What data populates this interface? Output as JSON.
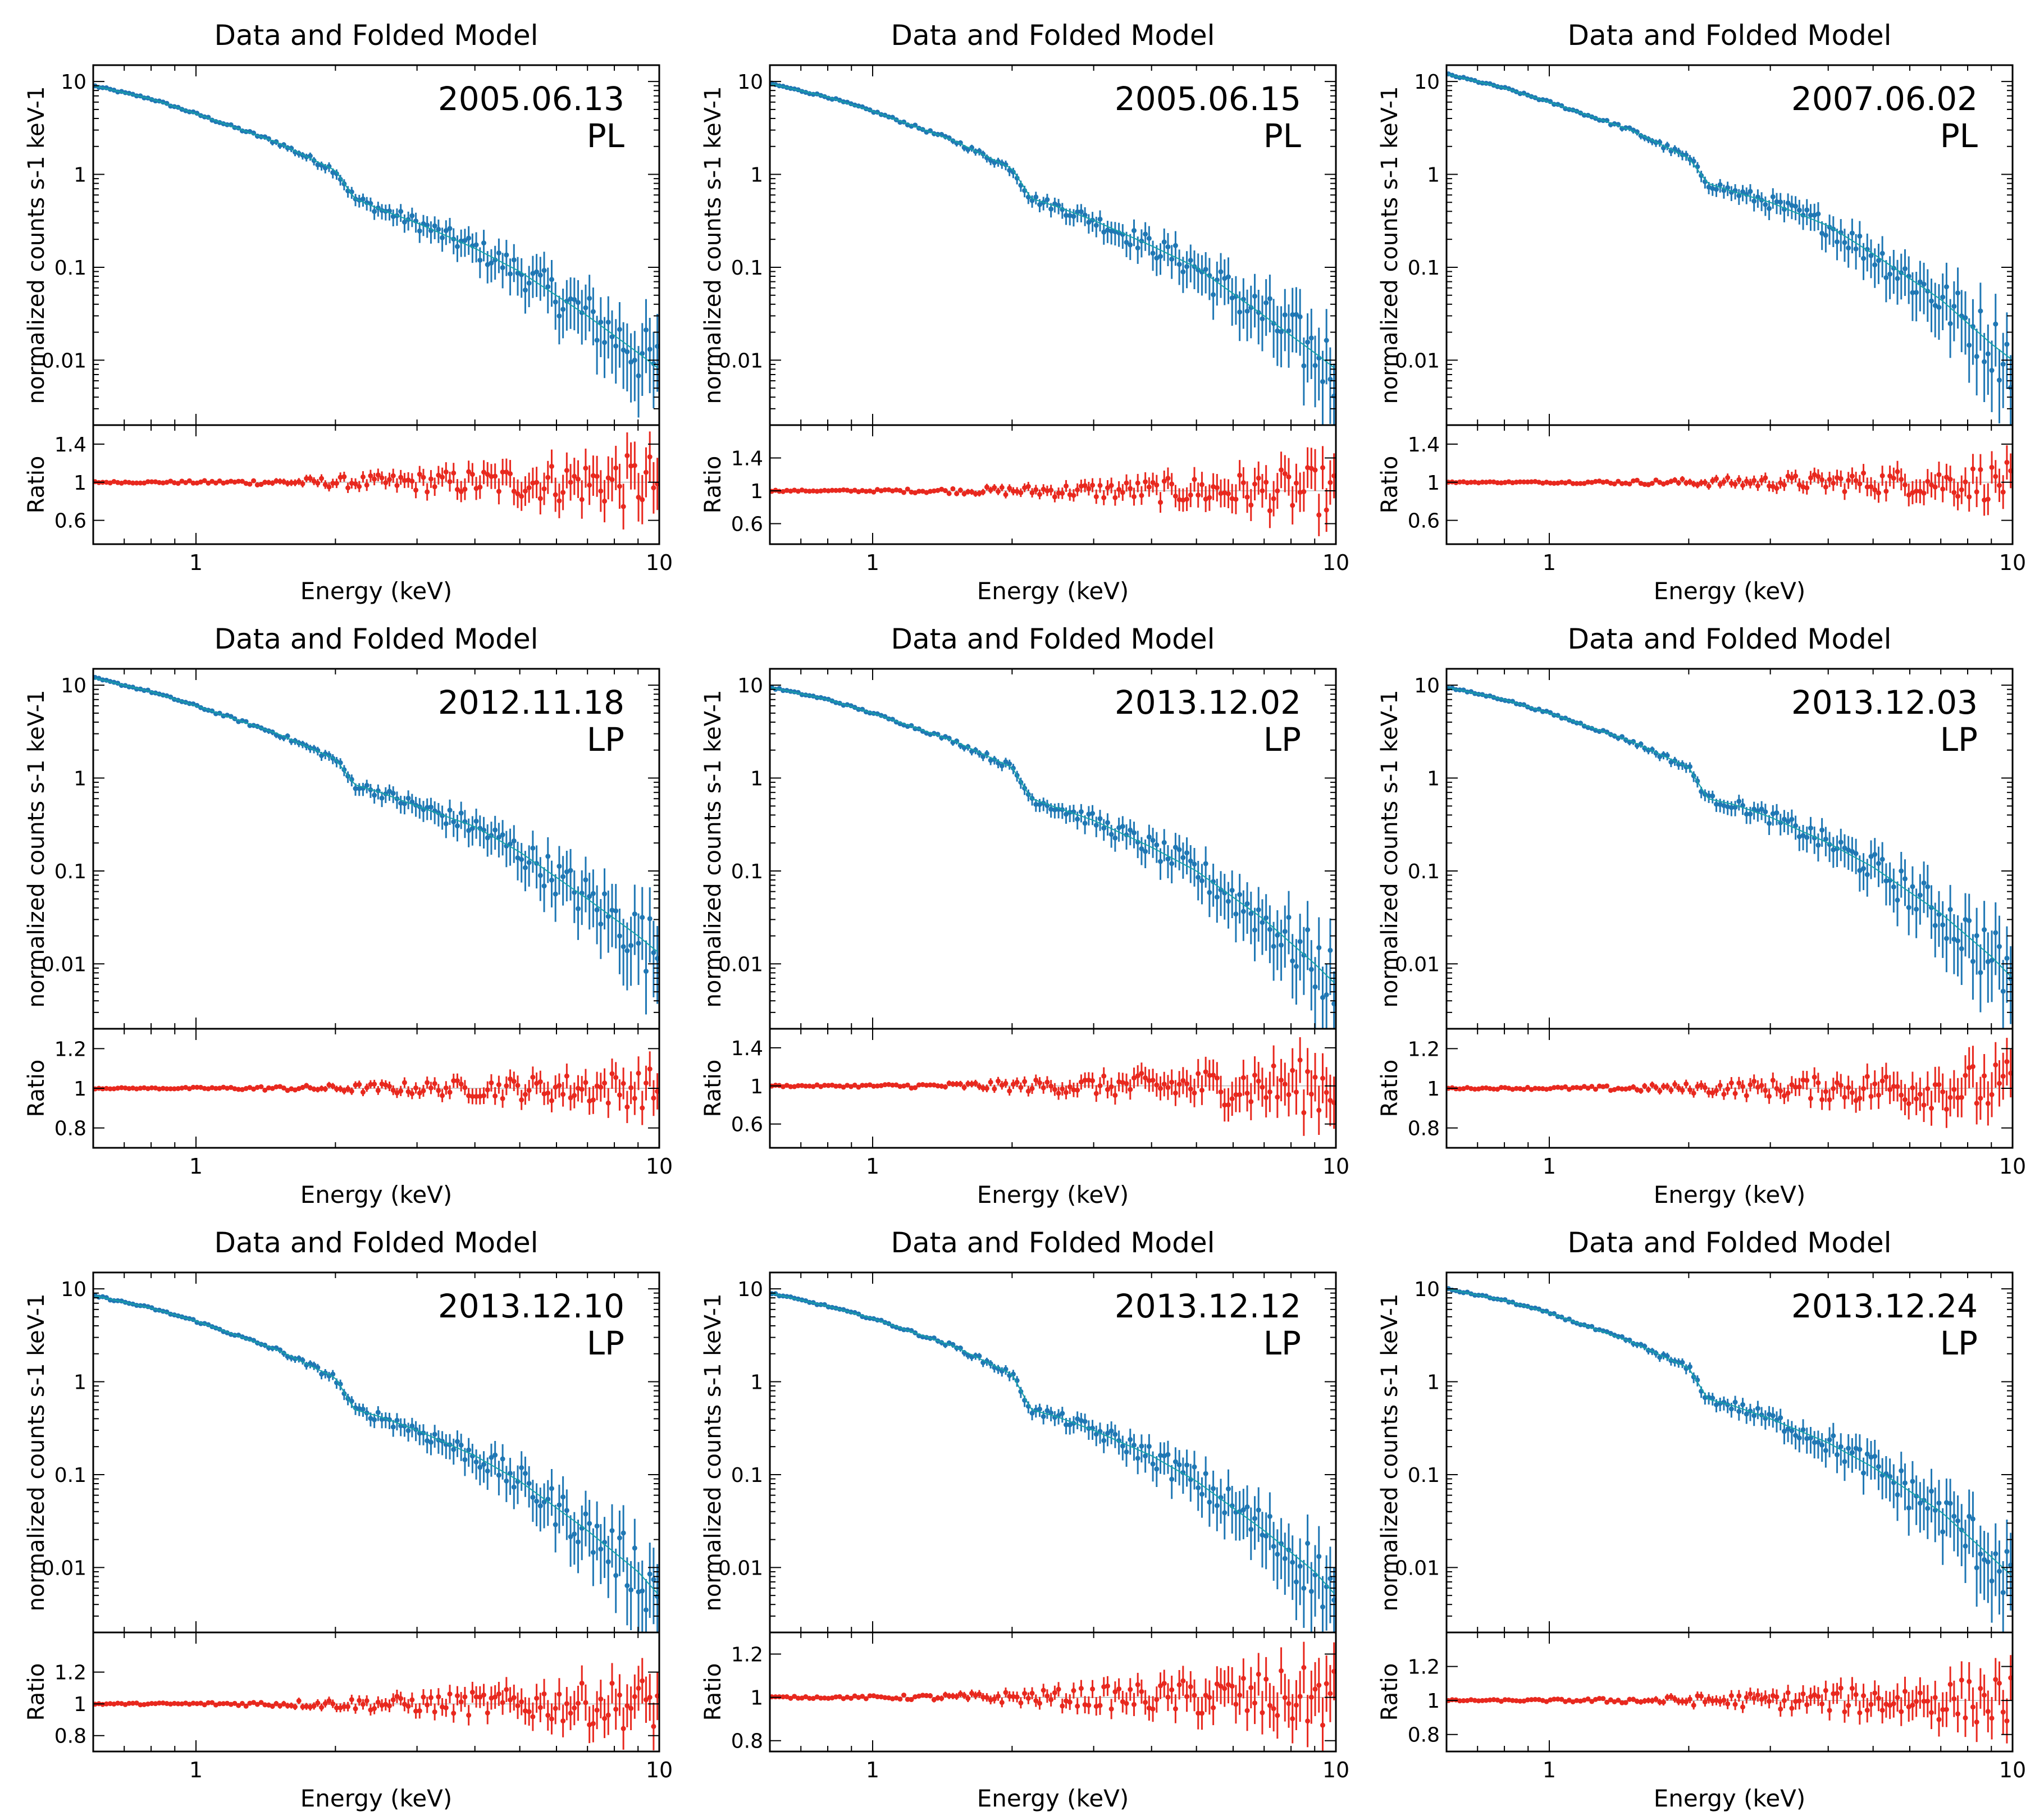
{
  "figure": {
    "panel_title": "Data and Folded Model",
    "colors": {
      "spectrum": "#1f77b4",
      "model": "#17a2a8",
      "ratio": "#e8281e",
      "axes": "#000000"
    }
  },
  "chart_data": [
    {
      "type": "line",
      "title": "Data and Folded Model",
      "date": "2005.06.13",
      "model": "PL",
      "xlabel": "Energy (keV)",
      "ylabel": "normalized counts s-1 keV-1",
      "ratio_label": "Ratio",
      "xlim": [
        0.6,
        10
      ],
      "ylim": [
        0.002,
        15
      ],
      "x_ticks": [
        "1",
        "10"
      ],
      "x_tick_values": [
        1,
        10
      ],
      "y_ticks": [
        "10",
        "1",
        "0.1",
        "0.01"
      ],
      "y_tick_values": [
        10,
        1,
        0.1,
        0.01
      ],
      "ratio_ylim": [
        0.35,
        1.6
      ],
      "ratio_ticks": [
        "1.4",
        "1",
        "0.6"
      ],
      "ratio_tick_values": [
        1.4,
        1,
        0.6
      ],
      "spectrum": {
        "energy": [
          0.6,
          0.8,
          1.0,
          1.5,
          2.0,
          2.2,
          2.5,
          3.0,
          4.0,
          5.0,
          7.0,
          9.0,
          10.0
        ],
        "counts": [
          9.0,
          6.5,
          4.5,
          2.2,
          1.1,
          0.55,
          0.42,
          0.3,
          0.16,
          0.09,
          0.03,
          0.012,
          0.008
        ]
      },
      "ratio": {
        "energy": [
          0.6,
          1.0,
          3.0,
          10.0
        ],
        "values": [
          1.0,
          1.0,
          1.0,
          1.0
        ],
        "max_scatter": 0.45
      }
    },
    {
      "type": "line",
      "title": "Data and Folded Model",
      "date": "2005.06.15",
      "model": "PL",
      "xlabel": "Energy (keV)",
      "ylabel": "normalized counts s-1 keV-1",
      "ratio_label": "Ratio",
      "xlim": [
        0.6,
        10
      ],
      "ylim": [
        0.002,
        15
      ],
      "x_ticks": [
        "1",
        "10"
      ],
      "x_tick_values": [
        1,
        10
      ],
      "y_ticks": [
        "10",
        "1",
        "0.1",
        "0.01"
      ],
      "y_tick_values": [
        10,
        1,
        0.1,
        0.01
      ],
      "ratio_ylim": [
        0.35,
        1.8
      ],
      "ratio_ticks": [
        "1.4",
        "1",
        "0.6"
      ],
      "ratio_tick_values": [
        1.4,
        1,
        0.6
      ],
      "spectrum": {
        "energy": [
          0.6,
          0.8,
          1.0,
          1.5,
          2.0,
          2.2,
          2.5,
          3.0,
          4.0,
          5.0,
          7.0,
          9.0,
          10.0
        ],
        "counts": [
          9.5,
          6.8,
          4.8,
          2.3,
          1.15,
          0.55,
          0.45,
          0.32,
          0.17,
          0.1,
          0.03,
          0.012,
          0.008
        ]
      },
      "ratio": {
        "energy": [
          0.6,
          1.0,
          3.0,
          10.0
        ],
        "values": [
          1.0,
          1.0,
          1.0,
          1.0
        ],
        "max_scatter": 0.45
      }
    },
    {
      "type": "line",
      "title": "Data and Folded Model",
      "date": "2007.06.02",
      "model": "PL",
      "xlabel": "Energy (keV)",
      "ylabel": "normalized counts s-1 keV-1",
      "ratio_label": "Ratio",
      "xlim": [
        0.6,
        10
      ],
      "ylim": [
        0.002,
        15
      ],
      "x_ticks": [
        "1",
        "10"
      ],
      "x_tick_values": [
        1,
        10
      ],
      "y_ticks": [
        "10",
        "1",
        "0.1",
        "0.01"
      ],
      "y_tick_values": [
        10,
        1,
        0.1,
        0.01
      ],
      "ratio_ylim": [
        0.35,
        1.6
      ],
      "ratio_ticks": [
        "1.4",
        "1",
        "0.6"
      ],
      "ratio_tick_values": [
        1.4,
        1,
        0.6
      ],
      "spectrum": {
        "energy": [
          0.6,
          0.8,
          1.0,
          1.5,
          2.0,
          2.2,
          2.5,
          3.0,
          4.0,
          5.0,
          7.0,
          9.0,
          10.0
        ],
        "counts": [
          12.0,
          8.5,
          6.0,
          3.0,
          1.5,
          0.8,
          0.65,
          0.5,
          0.28,
          0.14,
          0.045,
          0.015,
          0.01
        ]
      },
      "ratio": {
        "energy": [
          0.6,
          1.0,
          3.0,
          10.0
        ],
        "values": [
          1.0,
          1.0,
          1.0,
          1.0
        ],
        "max_scatter": 0.3
      }
    },
    {
      "type": "line",
      "title": "Data and Folded Model",
      "date": "2012.11.18",
      "model": "LP",
      "xlabel": "Energy (keV)",
      "ylabel": "normalized counts s-1 keV-1",
      "ratio_label": "Ratio",
      "xlim": [
        0.6,
        10
      ],
      "ylim": [
        0.002,
        15
      ],
      "x_ticks": [
        "1",
        "10"
      ],
      "x_tick_values": [
        1,
        10
      ],
      "y_ticks": [
        "10",
        "1",
        "0.1",
        "0.01"
      ],
      "y_tick_values": [
        10,
        1,
        0.1,
        0.01
      ],
      "ratio_ylim": [
        0.7,
        1.3
      ],
      "ratio_ticks": [
        "1.2",
        "1",
        "0.8"
      ],
      "ratio_tick_values": [
        1.2,
        1,
        0.8
      ],
      "spectrum": {
        "energy": [
          0.6,
          0.8,
          1.0,
          1.5,
          2.0,
          2.2,
          2.5,
          3.0,
          4.0,
          5.0,
          7.0,
          9.0,
          10.0
        ],
        "counts": [
          12.0,
          8.5,
          6.0,
          3.0,
          1.6,
          0.85,
          0.7,
          0.5,
          0.3,
          0.16,
          0.05,
          0.02,
          0.013
        ]
      },
      "ratio": {
        "energy": [
          0.6,
          1.0,
          3.0,
          10.0
        ],
        "values": [
          1.0,
          1.0,
          1.0,
          1.0
        ],
        "max_scatter": 0.15
      }
    },
    {
      "type": "line",
      "title": "Data and Folded Model",
      "date": "2013.12.02",
      "model": "LP",
      "xlabel": "Energy (keV)",
      "ylabel": "normalized counts s-1 keV-1",
      "ratio_label": "Ratio",
      "xlim": [
        0.6,
        10
      ],
      "ylim": [
        0.002,
        15
      ],
      "x_ticks": [
        "1",
        "10"
      ],
      "x_tick_values": [
        1,
        10
      ],
      "y_ticks": [
        "10",
        "1",
        "0.1",
        "0.01"
      ],
      "y_tick_values": [
        10,
        1,
        0.1,
        0.01
      ],
      "ratio_ylim": [
        0.35,
        1.6
      ],
      "ratio_ticks": [
        "1.4",
        "1",
        "0.6"
      ],
      "ratio_tick_values": [
        1.4,
        1,
        0.6
      ],
      "spectrum": {
        "energy": [
          0.6,
          0.8,
          1.0,
          1.5,
          2.0,
          2.2,
          2.5,
          3.0,
          4.0,
          5.0,
          7.0,
          9.0,
          10.0
        ],
        "counts": [
          9.5,
          7.0,
          5.0,
          2.5,
          1.3,
          0.6,
          0.48,
          0.35,
          0.18,
          0.1,
          0.03,
          0.01,
          0.006
        ]
      },
      "ratio": {
        "energy": [
          0.6,
          1.0,
          3.0,
          10.0
        ],
        "values": [
          1.0,
          1.0,
          1.0,
          1.0
        ],
        "max_scatter": 0.45
      }
    },
    {
      "type": "line",
      "title": "Data and Folded Model",
      "date": "2013.12.03",
      "model": "LP",
      "xlabel": "Energy (keV)",
      "ylabel": "normalized counts s-1 keV-1",
      "ratio_label": "Ratio",
      "xlim": [
        0.6,
        10
      ],
      "ylim": [
        0.002,
        15
      ],
      "x_ticks": [
        "1",
        "10"
      ],
      "x_tick_values": [
        1,
        10
      ],
      "y_ticks": [
        "10",
        "1",
        "0.1",
        "0.01"
      ],
      "y_tick_values": [
        10,
        1,
        0.1,
        0.01
      ],
      "ratio_ylim": [
        0.7,
        1.3
      ],
      "ratio_ticks": [
        "1.2",
        "1",
        "0.8"
      ],
      "ratio_tick_values": [
        1.2,
        1,
        0.8
      ],
      "spectrum": {
        "energy": [
          0.6,
          0.8,
          1.0,
          1.5,
          2.0,
          2.2,
          2.5,
          3.0,
          4.0,
          5.0,
          7.0,
          9.0,
          10.0
        ],
        "counts": [
          9.5,
          7.0,
          5.0,
          2.5,
          1.3,
          0.6,
          0.52,
          0.38,
          0.2,
          0.11,
          0.035,
          0.012,
          0.007
        ]
      },
      "ratio": {
        "energy": [
          0.6,
          1.0,
          3.0,
          10.0
        ],
        "values": [
          1.0,
          1.0,
          1.0,
          1.0
        ],
        "max_scatter": 0.2
      }
    },
    {
      "type": "line",
      "title": "Data and Folded Model",
      "date": "2013.12.10",
      "model": "LP",
      "xlabel": "Energy (keV)",
      "ylabel": "normalized counts s-1 keV-1",
      "ratio_label": "Ratio",
      "xlim": [
        0.6,
        10
      ],
      "ylim": [
        0.002,
        15
      ],
      "x_ticks": [
        "1",
        "10"
      ],
      "x_tick_values": [
        1,
        10
      ],
      "y_ticks": [
        "10",
        "1",
        "0.1",
        "0.01"
      ],
      "y_tick_values": [
        10,
        1,
        0.1,
        0.01
      ],
      "ratio_ylim": [
        0.7,
        1.45
      ],
      "ratio_ticks": [
        "1.2",
        "1",
        "0.8"
      ],
      "ratio_tick_values": [
        1.2,
        1,
        0.8
      ],
      "spectrum": {
        "energy": [
          0.6,
          0.8,
          1.0,
          1.5,
          2.0,
          2.2,
          2.5,
          3.0,
          4.0,
          5.0,
          7.0,
          9.0,
          10.0
        ],
        "counts": [
          8.5,
          6.2,
          4.5,
          2.2,
          1.1,
          0.5,
          0.42,
          0.3,
          0.16,
          0.085,
          0.025,
          0.009,
          0.005
        ]
      },
      "ratio": {
        "energy": [
          0.6,
          1.0,
          3.0,
          10.0
        ],
        "values": [
          1.0,
          1.0,
          1.0,
          1.0
        ],
        "max_scatter": 0.25
      }
    },
    {
      "type": "line",
      "title": "Data and Folded Model",
      "date": "2013.12.12",
      "model": "LP",
      "xlabel": "Energy (keV)",
      "ylabel": "normalized counts s-1 keV-1",
      "ratio_label": "Ratio",
      "xlim": [
        0.6,
        10
      ],
      "ylim": [
        0.002,
        15
      ],
      "x_ticks": [
        "1",
        "10"
      ],
      "x_tick_values": [
        1,
        10
      ],
      "y_ticks": [
        "10",
        "1",
        "0.1",
        "0.01"
      ],
      "y_tick_values": [
        10,
        1,
        0.1,
        0.01
      ],
      "ratio_ylim": [
        0.75,
        1.3
      ],
      "ratio_ticks": [
        "1.2",
        "1",
        "0.8"
      ],
      "ratio_tick_values": [
        1.2,
        1,
        0.8
      ],
      "spectrum": {
        "energy": [
          0.6,
          0.8,
          1.0,
          1.5,
          2.0,
          2.2,
          2.5,
          3.0,
          4.0,
          5.0,
          7.0,
          9.0,
          10.0
        ],
        "counts": [
          9.0,
          6.5,
          4.8,
          2.4,
          1.2,
          0.5,
          0.42,
          0.3,
          0.16,
          0.085,
          0.025,
          0.009,
          0.005
        ]
      },
      "ratio": {
        "energy": [
          0.6,
          1.0,
          3.0,
          10.0
        ],
        "values": [
          1.0,
          1.0,
          1.0,
          1.0
        ],
        "max_scatter": 0.22
      }
    },
    {
      "type": "line",
      "title": "Data and Folded Model",
      "date": "2013.12.24",
      "model": "LP",
      "xlabel": "Energy (keV)",
      "ylabel": "normalized counts s-1 keV-1",
      "ratio_label": "Ratio",
      "xlim": [
        0.6,
        10
      ],
      "ylim": [
        0.002,
        15
      ],
      "x_ticks": [
        "1",
        "10"
      ],
      "x_tick_values": [
        1,
        10
      ],
      "y_ticks": [
        "10",
        "1",
        "0.1",
        "0.01"
      ],
      "y_tick_values": [
        10,
        1,
        0.1,
        0.01
      ],
      "ratio_ylim": [
        0.7,
        1.4
      ],
      "ratio_ticks": [
        "1.2",
        "1",
        "0.8"
      ],
      "ratio_tick_values": [
        1.2,
        1,
        0.8
      ],
      "spectrum": {
        "energy": [
          0.6,
          0.8,
          1.0,
          1.5,
          2.0,
          2.2,
          2.5,
          3.0,
          4.0,
          5.0,
          7.0,
          9.0,
          10.0
        ],
        "counts": [
          10.0,
          7.5,
          5.5,
          2.7,
          1.4,
          0.65,
          0.55,
          0.4,
          0.22,
          0.12,
          0.04,
          0.013,
          0.008
        ]
      },
      "ratio": {
        "energy": [
          0.6,
          1.0,
          3.0,
          10.0
        ],
        "values": [
          1.0,
          1.0,
          1.0,
          1.0
        ],
        "max_scatter": 0.22
      }
    }
  ]
}
